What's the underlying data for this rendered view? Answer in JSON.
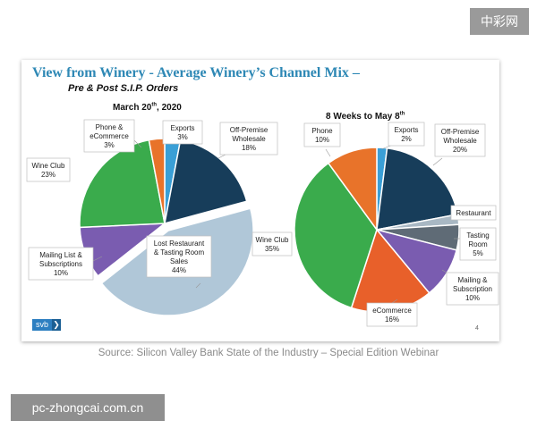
{
  "watermark_top": "中彩网",
  "watermark_bottom": "pc-zhongcai.com.cn",
  "source": "Source: Silicon Valley Bank State of the Industry – Special Edition Webinar",
  "logo": {
    "text": "svb",
    "arrow": "❯"
  },
  "page_number": "4",
  "colors": {
    "title": "#2e88b5",
    "wine_club": "#3aab4c",
    "phone": "#e8732a",
    "exports": "#3a9fd6",
    "off_premise": "#173d5a",
    "restaurant": "#a9b8c4",
    "tasting_room": "#5f6b76",
    "mailing": "#7a5cb0",
    "ecommerce": "#e8602a",
    "lost": "#b0c7d8"
  },
  "chart_data": [
    {
      "type": "pie",
      "title": "View from Winery - Average Winery’s Channel Mix –",
      "subtitle": "Pre & Post S.I.P. Orders",
      "chart_title": "March 20th, 2020",
      "slices": [
        {
          "label": "Exports",
          "value": 3,
          "value_text": "3%",
          "color": "#3a9fd6"
        },
        {
          "label": "Off-Premise Wholesale",
          "value": 18,
          "value_text": "18%",
          "color": "#173d5a"
        },
        {
          "label": "Lost Restaurant & Tasting Room Sales",
          "value": 44,
          "value_text": "44%",
          "color": "#b0c7d8",
          "exploded": true
        },
        {
          "label": "Mailing List & Subscriptions",
          "value": 10,
          "value_text": "10%",
          "color": "#7a5cb0"
        },
        {
          "label": "Wine Club",
          "value": 23,
          "value_text": "23%",
          "color": "#3aab4c"
        },
        {
          "label": "Phone & eCommerce",
          "value": 3,
          "value_text": "3%",
          "color": "#e8732a"
        }
      ]
    },
    {
      "type": "pie",
      "chart_title": "8 Weeks to May 8th",
      "slices": [
        {
          "label": "Exports",
          "value": 2,
          "value_text": "2%",
          "color": "#3a9fd6"
        },
        {
          "label": "Off-Premise Wholesale",
          "value": 20,
          "value_text": "20%",
          "color": "#173d5a"
        },
        {
          "label": "Restaurant",
          "value": 2,
          "value_text": "",
          "color": "#a9b8c4"
        },
        {
          "label": "Tasting Room",
          "value": 5,
          "value_text": "5%",
          "color": "#5f6b76"
        },
        {
          "label": "Mailing & Subscription",
          "value": 10,
          "value_text": "10%",
          "color": "#7a5cb0"
        },
        {
          "label": "eCommerce",
          "value": 16,
          "value_text": "16%",
          "color": "#e8602a"
        },
        {
          "label": "Wine Club",
          "value": 35,
          "value_text": "35%",
          "color": "#3aab4c"
        },
        {
          "label": "Phone",
          "value": 10,
          "value_text": "10%",
          "color": "#e8732a"
        }
      ]
    }
  ]
}
